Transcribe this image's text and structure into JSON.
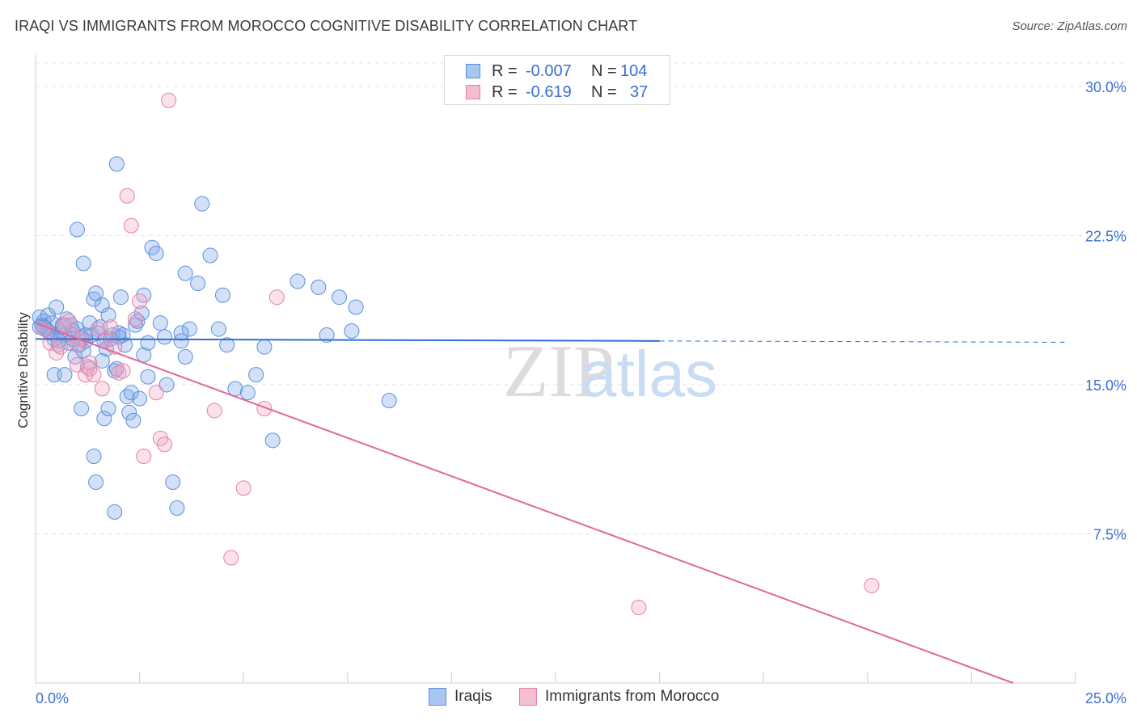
{
  "title": "IRAQI VS IMMIGRANTS FROM MOROCCO COGNITIVE DISABILITY CORRELATION CHART",
  "source": "Source: ZipAtlas.com",
  "watermark": {
    "zip": "ZIP",
    "atlas": "atlas"
  },
  "legend_top": {
    "rows": [
      {
        "r_label": "R =",
        "r_value": "-0.007",
        "n_label": "N =",
        "n_value": "104",
        "color": "#a9c6f0",
        "stroke": "#5b8fdd"
      },
      {
        "r_label": "R =",
        "r_value": "-0.619",
        "n_label": "N =",
        "n_value": "37",
        "color": "#f6bcd0",
        "stroke": "#e87fa5"
      }
    ]
  },
  "legend_bottom": {
    "items": [
      {
        "label": "Iraqis",
        "color": "#a9c6f0",
        "stroke": "#5b8fdd"
      },
      {
        "label": "Immigrants from Morocco",
        "color": "#f6bcd0",
        "stroke": "#e87fa5"
      }
    ]
  },
  "chart_data": {
    "type": "scatter",
    "title": "IRAQI VS IMMIGRANTS FROM MOROCCO COGNITIVE DISABILITY CORRELATION CHART",
    "xlabel": "",
    "ylabel": "Cognitive Disability",
    "xlim": [
      0,
      25
    ],
    "ylim": [
      0,
      31.5
    ],
    "x_tick_labels": [
      "0.0%",
      "25.0%"
    ],
    "y_ticks": [
      7.5,
      15.0,
      22.5,
      30.0
    ],
    "y_tick_labels": [
      "7.5%",
      "15.0%",
      "22.5%",
      "30.0%"
    ],
    "grid": true,
    "series": [
      {
        "name": "Iraqis",
        "color": "#7ea9e8",
        "stroke": "#5b8fdd",
        "trend": {
          "x": [
            0,
            15
          ],
          "y": [
            17.3,
            17.2
          ],
          "dashed_to": 24.8,
          "color": "#2f6fd6"
        },
        "points": [
          [
            0.1,
            18.4
          ],
          [
            0.15,
            18.0
          ],
          [
            0.2,
            18.2
          ],
          [
            0.25,
            17.8
          ],
          [
            0.3,
            18.5
          ],
          [
            0.35,
            17.6
          ],
          [
            0.4,
            18.1
          ],
          [
            0.45,
            17.3
          ],
          [
            0.5,
            18.9
          ],
          [
            0.55,
            17.0
          ],
          [
            0.6,
            17.6
          ],
          [
            0.65,
            17.9
          ],
          [
            0.7,
            17.5
          ],
          [
            0.75,
            18.3
          ],
          [
            0.8,
            17.1
          ],
          [
            0.85,
            18.0
          ],
          [
            0.9,
            17.7
          ],
          [
            0.95,
            16.4
          ],
          [
            1.0,
            17.8
          ],
          [
            1.05,
            17.0
          ],
          [
            1.1,
            17.4
          ],
          [
            1.15,
            16.7
          ],
          [
            1.2,
            17.2
          ],
          [
            1.25,
            15.9
          ],
          [
            1.3,
            18.1
          ],
          [
            1.35,
            17.5
          ],
          [
            1.4,
            19.3
          ],
          [
            1.45,
            19.6
          ],
          [
            1.5,
            17.6
          ],
          [
            1.55,
            17.9
          ],
          [
            1.6,
            19.0
          ],
          [
            1.65,
            17.2
          ],
          [
            1.7,
            16.8
          ],
          [
            1.75,
            18.5
          ],
          [
            1.8,
            17.3
          ],
          [
            1.85,
            17.5
          ],
          [
            1.9,
            15.7
          ],
          [
            1.95,
            15.8
          ],
          [
            2.0,
            17.6
          ],
          [
            2.05,
            19.4
          ],
          [
            2.1,
            17.5
          ],
          [
            2.15,
            17.0
          ],
          [
            2.2,
            14.4
          ],
          [
            2.25,
            13.6
          ],
          [
            2.3,
            14.6
          ],
          [
            2.35,
            13.2
          ],
          [
            2.4,
            18.0
          ],
          [
            2.45,
            18.2
          ],
          [
            2.5,
            14.3
          ],
          [
            2.55,
            18.6
          ],
          [
            2.6,
            19.5
          ],
          [
            2.7,
            15.4
          ],
          [
            2.8,
            21.9
          ],
          [
            2.9,
            21.6
          ],
          [
            3.0,
            18.1
          ],
          [
            3.1,
            17.4
          ],
          [
            3.15,
            15.0
          ],
          [
            3.3,
            10.1
          ],
          [
            3.4,
            8.8
          ],
          [
            3.5,
            17.2
          ],
          [
            3.6,
            20.6
          ],
          [
            3.7,
            17.8
          ],
          [
            3.9,
            20.1
          ],
          [
            4.0,
            24.1
          ],
          [
            4.2,
            21.5
          ],
          [
            4.4,
            17.8
          ],
          [
            4.5,
            19.5
          ],
          [
            4.6,
            17.0
          ],
          [
            4.8,
            14.8
          ],
          [
            5.1,
            14.6
          ],
          [
            5.3,
            15.5
          ],
          [
            5.5,
            16.9
          ],
          [
            5.7,
            12.2
          ],
          [
            6.3,
            20.2
          ],
          [
            6.8,
            19.9
          ],
          [
            7.0,
            17.5
          ],
          [
            7.3,
            19.4
          ],
          [
            7.6,
            17.7
          ],
          [
            7.7,
            18.9
          ],
          [
            8.5,
            14.2
          ],
          [
            1.0,
            22.8
          ],
          [
            1.15,
            21.1
          ],
          [
            1.95,
            26.1
          ],
          [
            0.45,
            15.5
          ],
          [
            0.7,
            15.5
          ],
          [
            1.1,
            13.8
          ],
          [
            1.4,
            11.4
          ],
          [
            1.45,
            10.1
          ],
          [
            1.65,
            13.3
          ],
          [
            1.75,
            13.8
          ],
          [
            1.9,
            8.6
          ],
          [
            0.2,
            17.9
          ],
          [
            0.3,
            17.7
          ],
          [
            0.55,
            17.2
          ],
          [
            0.65,
            18.0
          ],
          [
            0.9,
            17.3
          ],
          [
            1.2,
            17.5
          ],
          [
            1.6,
            16.2
          ],
          [
            2.0,
            17.4
          ],
          [
            2.6,
            16.5
          ],
          [
            3.5,
            17.6
          ],
          [
            3.6,
            16.4
          ],
          [
            2.7,
            17.1
          ],
          [
            0.1,
            17.9
          ]
        ]
      },
      {
        "name": "Immigrants from Morocco",
        "color": "#f4a9c3",
        "stroke": "#e87fa5",
        "trend": {
          "x": [
            0,
            23.5
          ],
          "y": [
            18.1,
            0.0
          ],
          "color": "#e2669a"
        },
        "points": [
          [
            0.2,
            17.8
          ],
          [
            0.35,
            17.1
          ],
          [
            0.5,
            16.6
          ],
          [
            0.6,
            16.9
          ],
          [
            0.8,
            18.2
          ],
          [
            0.9,
            17.5
          ],
          [
            1.0,
            16.0
          ],
          [
            1.1,
            17.3
          ],
          [
            1.2,
            15.5
          ],
          [
            1.3,
            16.1
          ],
          [
            1.4,
            15.5
          ],
          [
            1.5,
            17.8
          ],
          [
            1.6,
            14.8
          ],
          [
            1.7,
            17.3
          ],
          [
            1.8,
            17.9
          ],
          [
            1.9,
            16.9
          ],
          [
            2.0,
            15.6
          ],
          [
            2.1,
            15.7
          ],
          [
            2.2,
            24.5
          ],
          [
            2.3,
            23.0
          ],
          [
            2.4,
            18.3
          ],
          [
            2.5,
            19.2
          ],
          [
            2.6,
            11.4
          ],
          [
            2.9,
            14.6
          ],
          [
            3.0,
            12.3
          ],
          [
            3.1,
            12.0
          ],
          [
            3.2,
            29.3
          ],
          [
            4.3,
            13.7
          ],
          [
            4.7,
            6.3
          ],
          [
            5.0,
            9.8
          ],
          [
            5.5,
            13.8
          ],
          [
            5.8,
            19.4
          ],
          [
            14.5,
            3.8
          ],
          [
            20.1,
            4.9
          ],
          [
            0.7,
            18.0
          ],
          [
            1.0,
            17.0
          ],
          [
            1.3,
            15.8
          ]
        ]
      }
    ]
  }
}
